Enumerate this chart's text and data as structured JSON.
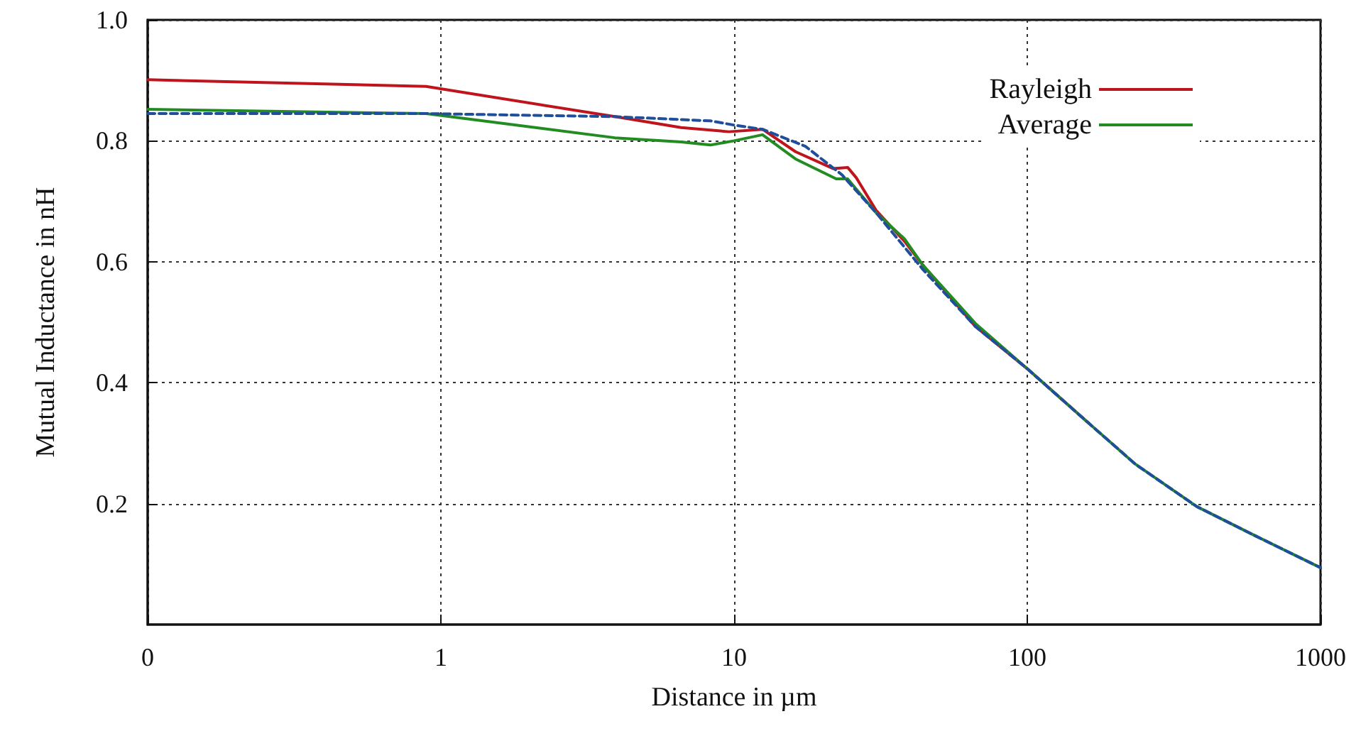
{
  "chart_data": {
    "type": "line",
    "xlabel": "Distance in µm",
    "ylabel": "Mutual Inductance in nH",
    "log": "x",
    "xlim": [
      0.1,
      1000
    ],
    "xticks": [
      {
        "value": 0.1,
        "label": "0"
      },
      1,
      10,
      100,
      1000
    ],
    "ylim": [
      0,
      1
    ],
    "yticks": [
      0.2,
      0.4,
      0.6,
      0.8,
      {
        "value": 1,
        "label": "1.0"
      }
    ],
    "grid": true,
    "legend": "top right",
    "series": [
      {
        "name": "Rayleigh",
        "color": "#c0141c",
        "line_style": "solid",
        "x": [
          0.1,
          0.89,
          3.92,
          6.6,
          9.6,
          12.5,
          16.2,
          21.8,
          24.4,
          26.1,
          30.5,
          38.1,
          44.1,
          66.5,
          100,
          162
        ],
        "values": [
          0.901,
          0.89,
          0.84,
          0.822,
          0.815,
          0.819,
          0.782,
          0.754,
          0.756,
          0.739,
          0.685,
          0.634,
          0.594,
          0.493,
          0.423,
          0.333
        ]
      },
      {
        "name": "Average",
        "color": "#228b22",
        "line_style": "solid",
        "x": [
          0.1,
          0.89,
          3.92,
          6.6,
          8.3,
          10,
          12.5,
          16.2,
          22.3,
          24.4,
          30.5,
          38.1,
          44.1,
          66.5,
          100,
          162,
          234,
          379,
          592,
          1000
        ],
        "values": [
          0.852,
          0.845,
          0.805,
          0.798,
          0.793,
          0.8,
          0.81,
          0.77,
          0.737,
          0.737,
          0.681,
          0.638,
          0.594,
          0.498,
          0.423,
          0.333,
          0.265,
          0.195,
          0.148,
          0.094
        ]
      },
      {
        "color": "#1f4e9c",
        "line_style": "dashed",
        "x": [
          0.1,
          0.89,
          3.92,
          8.3,
          10,
          12.5,
          17.5,
          23.3,
          30.5,
          44.1,
          66.5,
          100,
          162,
          234,
          379,
          592,
          1000
        ],
        "values": [
          0.845,
          0.845,
          0.84,
          0.833,
          0.826,
          0.819,
          0.791,
          0.744,
          0.681,
          0.587,
          0.493,
          0.423,
          0.333,
          0.265,
          0.195,
          0.148,
          0.094
        ]
      }
    ]
  }
}
